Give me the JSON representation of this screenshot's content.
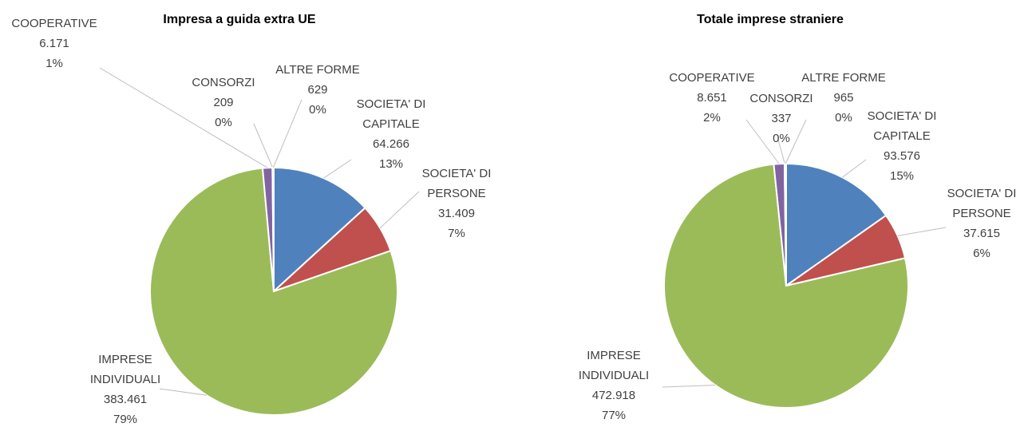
{
  "chart_data": [
    {
      "type": "pie",
      "title": "Impresa a guida extra UE",
      "categories": [
        "SOCIETA' DI CAPITALE",
        "SOCIETA' DI PERSONE",
        "IMPRESE INDIVIDUALI",
        "COOPERATIVE",
        "CONSORZI",
        "ALTRE FORME"
      ],
      "values": [
        64266,
        31409,
        383461,
        6171,
        209,
        629
      ],
      "value_labels": [
        "64.266",
        "31.409",
        "383.461",
        "6.171",
        "209",
        "629"
      ],
      "percentage_labels": [
        "13%",
        "7%",
        "79%",
        "1%",
        "0%",
        "0%"
      ],
      "colors": [
        "#4f81bd",
        "#c0504d",
        "#9bbb59",
        "#8064a2",
        "#4bacc6",
        "#f79646"
      ]
    },
    {
      "type": "pie",
      "title": "Totale imprese straniere",
      "categories": [
        "SOCIETA' DI CAPITALE",
        "SOCIETA' DI PERSONE",
        "IMPRESE INDIVIDUALI",
        "COOPERATIVE",
        "CONSORZI",
        "ALTRE FORME"
      ],
      "values": [
        93576,
        37615,
        472918,
        8651,
        337,
        965
      ],
      "value_labels": [
        "93.576",
        "37.615",
        "472.918",
        "8.651",
        "337",
        "965"
      ],
      "percentage_labels": [
        "15%",
        "6%",
        "77%",
        "2%",
        "0%",
        "0%"
      ],
      "colors": [
        "#4f81bd",
        "#c0504d",
        "#9bbb59",
        "#8064a2",
        "#4bacc6",
        "#f79646"
      ]
    }
  ]
}
